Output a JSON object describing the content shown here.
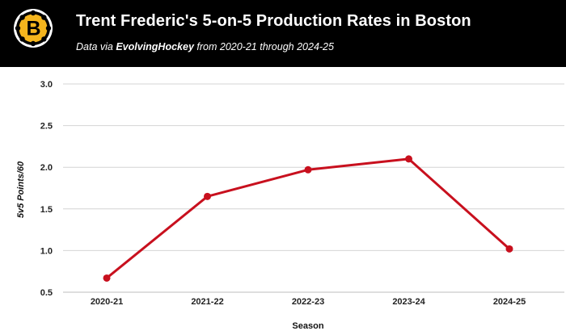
{
  "header": {
    "title": "Trent Frederic's 5-on-5 Production Rates in Boston",
    "subtitle_prefix": "Data via ",
    "subtitle_source": "EvolvingHockey",
    "subtitle_suffix": " from 2020-21 through 2024-25",
    "logo_letter": "B",
    "logo_icon": "bruins-logo-icon",
    "background_color": "#000000",
    "logo_gold": "#f5b51d"
  },
  "chart_data": {
    "type": "line",
    "title": "Trent Frederic's 5-on-5 Production Rates in Boston",
    "subtitle": "Data via EvolvingHockey from 2020-21 through 2024-25",
    "xlabel": "Season",
    "ylabel": "5v5 Points/60",
    "categories": [
      "2020-21",
      "2021-22",
      "2022-23",
      "2023-24",
      "2024-25"
    ],
    "series": [
      {
        "values": [
          0.67,
          1.65,
          1.97,
          2.1,
          1.02
        ],
        "color": "#c8101e"
      }
    ],
    "ylim": [
      0.5,
      3.0
    ],
    "yticks": [
      0.5,
      1.0,
      1.5,
      2.0,
      2.5,
      3.0
    ],
    "ytick_labels": [
      "0.5",
      "1.0",
      "1.5",
      "2.0",
      "2.5",
      "3.0"
    ],
    "grid": true,
    "legend": "none"
  }
}
